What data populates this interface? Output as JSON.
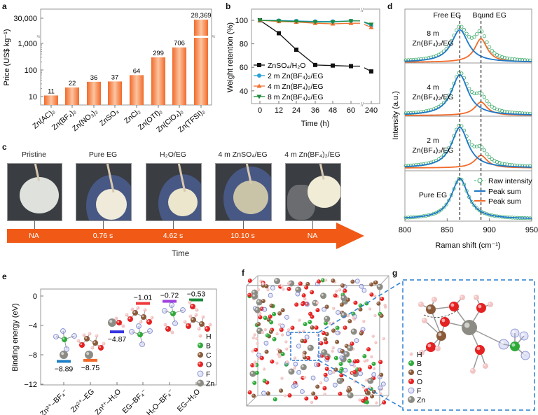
{
  "panels": {
    "a": "a",
    "b": "b",
    "c": "c",
    "d": "d",
    "e": "e",
    "f": "f",
    "g": "g"
  },
  "chart_data": [
    {
      "id": "a",
      "type": "bar",
      "ylabel": "Price (US$ kg⁻¹)",
      "yscale": "log (broken axis)",
      "yticks": [
        "10",
        "100",
        "1,000",
        "30,000"
      ],
      "categories": [
        "Zn(AC)₂",
        "Zn(BF₄)₂",
        "Zn(NO₃)₂",
        "ZnSO₄",
        "ZnCl₂",
        "Zn(OTf)₂",
        "Zn(ClO₄)₂",
        "Zn(TFSI)₂"
      ],
      "values": [
        11,
        22,
        36,
        37,
        64,
        299,
        706,
        28369
      ],
      "data_labels": [
        "11",
        "22",
        "36",
        "37",
        "64",
        "299",
        "706",
        "28,369"
      ],
      "color": "#f4874b"
    },
    {
      "id": "b",
      "type": "line",
      "xlabel": "Time (h)",
      "ylabel": "Weight retention (%)",
      "x": [
        0,
        12,
        24,
        36,
        48,
        60,
        240
      ],
      "xticks": [
        "0",
        "12",
        "24",
        "36",
        "48",
        "60",
        "240"
      ],
      "xbreak": "between 60 and 240",
      "yticks": [
        "40",
        "60",
        "80",
        "100"
      ],
      "ylim": [
        30,
        110
      ],
      "legend": "bottom-left",
      "series": [
        {
          "name": "ZnSO₄/H₂O",
          "color": "#111111",
          "marker": "square",
          "values": [
            100,
            89,
            75,
            62,
            61.5,
            61,
            56.5
          ]
        },
        {
          "name": "2 m Zn(BF₄)₂/EG",
          "color": "#2a9fd8",
          "marker": "circle",
          "values": [
            100,
            99.8,
            99.5,
            99,
            99,
            99.5,
            95.5
          ]
        },
        {
          "name": "4 m Zn(BF₄)₂/EG",
          "color": "#f07030",
          "marker": "triangle-up",
          "values": [
            100,
            99,
            98.5,
            97.5,
            97,
            97.5,
            94
          ]
        },
        {
          "name": "8 m Zn(BF₄)₂/EG",
          "color": "#1e8a3c",
          "marker": "triangle-down",
          "values": [
            100,
            99.5,
            99,
            98.5,
            98.5,
            99.5,
            96.5
          ]
        }
      ]
    },
    {
      "id": "d",
      "type": "line",
      "xlabel": "Raman shift (cm⁻¹)",
      "ylabel": "Intensity (a.u.)",
      "xlim": [
        800,
        950
      ],
      "xticks": [
        "800",
        "850",
        "900",
        "950"
      ],
      "annotations": [
        "Free EG",
        "Bound EG"
      ],
      "reference_lines": [
        865,
        890
      ],
      "legend": [
        "Raw intensity",
        "Peak sum",
        "Peak sum"
      ],
      "legend_colors": [
        "#3aaa6a",
        "#1f78c8",
        "#f26a2a"
      ],
      "stacks": [
        {
          "label1": "8 m",
          "label2": "Zn(BF₄)₂/EG",
          "free_peak": {
            "center": 865,
            "amplitude": 0.8
          },
          "bound_peak": {
            "center": 890,
            "amplitude": 0.58
          }
        },
        {
          "label1": "4 m",
          "label2": "Zn(BF₄)₂/EG",
          "free_peak": {
            "center": 865,
            "amplitude": 1.0
          },
          "bound_peak": {
            "center": 890,
            "amplitude": 0.33
          }
        },
        {
          "label1": "2 m",
          "label2": "Zn(BF₄)₂/EG",
          "free_peak": {
            "center": 865,
            "amplitude": 1.0
          },
          "bound_peak": {
            "center": 890,
            "amplitude": 0.31
          }
        },
        {
          "label1": "",
          "label2": "Pure EG",
          "free_peak": {
            "center": 865,
            "amplitude": 1.0
          },
          "bound_peak": null
        }
      ]
    },
    {
      "id": "e",
      "type": "bar",
      "ylabel": "Binding energy (eV)",
      "ylim": [
        -12,
        1
      ],
      "yticks": [
        "0",
        "−4",
        "−8",
        "−12"
      ],
      "categories": [
        "Zn²⁺–BF₄⁻",
        "Zn²⁺–EG",
        "Zn²⁺–H₂O",
        "EG–BF₄⁻",
        "H₂O–BF₄⁻",
        "EG–H₂O"
      ],
      "values": [
        -8.89,
        -8.75,
        -4.87,
        -1.01,
        -0.72,
        -0.53
      ],
      "data_labels": [
        "−8.89",
        "−8.75",
        "−4.87",
        "−1.01",
        "−0.72",
        "−0.53"
      ],
      "colors": [
        "#1f7fc4",
        "#f26a2a",
        "#3535e0",
        "#ee3b3b",
        "#a040e0",
        "#1a8a3a"
      ]
    }
  ],
  "panel_c": {
    "samples": [
      {
        "title": "Pristine",
        "time": "NA"
      },
      {
        "title": "Pure EG",
        "time": "0.76 s"
      },
      {
        "title": "H₂O/EG",
        "time": "4.62 s"
      },
      {
        "title": "4 m ZnSO₄/EG",
        "time": "10.10 s"
      },
      {
        "title": "4 m Zn(BF₄)₂/EG",
        "time": "NA"
      }
    ],
    "axis_label": "Time",
    "arrow_color": "#f05a16"
  },
  "atom_legend": [
    {
      "label": "H",
      "color": "#f2c4c4"
    },
    {
      "label": "B",
      "color": "#2faa3a"
    },
    {
      "label": "C",
      "color": "#8a5a3a"
    },
    {
      "label": "O",
      "color": "#e52222"
    },
    {
      "label": "F",
      "color": "#a8b0e6"
    },
    {
      "label": "Zn",
      "color": "#8c8c84"
    }
  ]
}
